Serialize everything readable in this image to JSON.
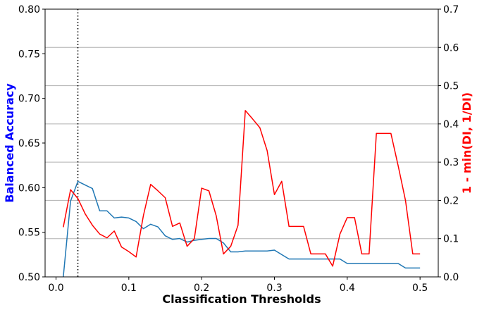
{
  "chart_data": {
    "type": "line",
    "title": "",
    "xlabel": "Classification Thresholds",
    "ylabel_left": "Balanced Accuracy",
    "ylabel_right": "1 - min(DI, 1/DI)",
    "colors": {
      "left_axis_label": "#0000ff",
      "right_axis_label": "#ff0000",
      "series_left": "#1f77b4",
      "series_right": "#ff0000",
      "grid": "#b0b0b0",
      "marker_line": "#000000"
    },
    "xlim": [
      -0.015,
      0.525
    ],
    "ylim_left": [
      0.5,
      0.8
    ],
    "ylim_right": [
      0.0,
      0.7
    ],
    "x_ticks": [
      0.0,
      0.1,
      0.2,
      0.3,
      0.4,
      0.5
    ],
    "x_tick_labels": [
      "0.0",
      "0.1",
      "0.2",
      "0.3",
      "0.4",
      "0.5"
    ],
    "y_ticks_left": [
      0.5,
      0.55,
      0.6,
      0.65,
      0.7,
      0.75,
      0.8
    ],
    "y_tick_labels_left": [
      "0.50",
      "0.55",
      "0.60",
      "0.65",
      "0.70",
      "0.75",
      "0.80"
    ],
    "y_ticks_right": [
      0.0,
      0.1,
      0.2,
      0.3,
      0.4,
      0.5,
      0.6,
      0.7
    ],
    "y_tick_labels_right": [
      "0.0",
      "0.1",
      "0.2",
      "0.3",
      "0.4",
      "0.5",
      "0.6",
      "0.7"
    ],
    "grid": "horizontal lines at right-axis ticks",
    "vertical_marker_x": 0.03,
    "series": [
      {
        "axis": "left",
        "x": [
          0.01,
          0.02,
          0.03,
          0.04,
          0.05,
          0.06,
          0.07,
          0.08,
          0.09,
          0.1,
          0.11,
          0.12,
          0.13,
          0.14,
          0.15,
          0.16,
          0.17,
          0.18,
          0.19,
          0.2,
          0.21,
          0.22,
          0.23,
          0.24,
          0.25,
          0.26,
          0.27,
          0.28,
          0.29,
          0.3,
          0.31,
          0.32,
          0.33,
          0.34,
          0.35,
          0.36,
          0.37,
          0.38,
          0.39,
          0.4,
          0.41,
          0.42,
          0.43,
          0.44,
          0.45,
          0.46,
          0.47,
          0.48,
          0.49,
          0.5
        ],
        "y": [
          0.5,
          0.585,
          0.607,
          0.603,
          0.599,
          0.574,
          0.574,
          0.566,
          0.567,
          0.566,
          0.562,
          0.554,
          0.559,
          0.556,
          0.546,
          0.542,
          0.543,
          0.539,
          0.541,
          0.542,
          0.543,
          0.543,
          0.538,
          0.528,
          0.528,
          0.529,
          0.529,
          0.529,
          0.529,
          0.53,
          0.525,
          0.52,
          0.52,
          0.52,
          0.52,
          0.52,
          0.52,
          0.52,
          0.52,
          0.515,
          0.515,
          0.515,
          0.515,
          0.515,
          0.515,
          0.515,
          0.515,
          0.51,
          0.51,
          0.51
        ]
      },
      {
        "axis": "right",
        "x": [
          0.01,
          0.02,
          0.03,
          0.04,
          0.05,
          0.06,
          0.07,
          0.08,
          0.09,
          0.1,
          0.11,
          0.12,
          0.13,
          0.14,
          0.15,
          0.16,
          0.17,
          0.18,
          0.19,
          0.2,
          0.21,
          0.22,
          0.23,
          0.24,
          0.25,
          0.26,
          0.27,
          0.28,
          0.29,
          0.3,
          0.31,
          0.32,
          0.33,
          0.34,
          0.35,
          0.36,
          0.37,
          0.38,
          0.39,
          0.4,
          0.41,
          0.42,
          0.43,
          0.44,
          0.45,
          0.46,
          0.47,
          0.48,
          0.49,
          0.5
        ],
        "y": [
          0.13,
          0.228,
          0.205,
          0.165,
          0.135,
          0.112,
          0.102,
          0.12,
          0.078,
          0.066,
          0.052,
          0.16,
          0.242,
          0.225,
          0.207,
          0.132,
          0.141,
          0.08,
          0.1,
          0.232,
          0.225,
          0.16,
          0.06,
          0.08,
          0.135,
          0.435,
          0.413,
          0.39,
          0.33,
          0.215,
          0.25,
          0.132,
          0.132,
          0.132,
          0.06,
          0.06,
          0.06,
          0.028,
          0.112,
          0.155,
          0.155,
          0.06,
          0.06,
          0.375,
          0.375,
          0.375,
          0.29,
          0.2,
          0.06,
          0.06
        ]
      }
    ]
  }
}
